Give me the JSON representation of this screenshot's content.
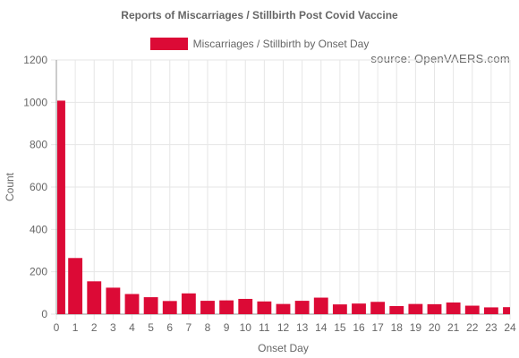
{
  "colors": {
    "bar": "#dc0a36",
    "grid": "#e6e6e6",
    "axis": "#999999",
    "text": "#666666"
  },
  "source_note": "source: OpenVAERS.com",
  "chart_data": {
    "type": "bar",
    "title": "Reports of Miscarriages / Stillbirth Post Covid Vaccine",
    "xlabel": "Onset Day",
    "ylabel": "Count",
    "ylim": [
      0,
      1200
    ],
    "yticks": [
      0,
      200,
      400,
      600,
      800,
      1000,
      1200
    ],
    "grid": true,
    "legend": "top-center",
    "categories": [
      "0",
      "1",
      "2",
      "3",
      "4",
      "5",
      "6",
      "7",
      "8",
      "9",
      "10",
      "11",
      "12",
      "13",
      "14",
      "15",
      "16",
      "17",
      "18",
      "19",
      "20",
      "21",
      "22",
      "23",
      "24"
    ],
    "series": [
      {
        "name": "Miscarriages / Stillbirth by Onset Day",
        "values": [
          1008,
          265,
          155,
          125,
          95,
          80,
          62,
          98,
          63,
          65,
          72,
          60,
          48,
          63,
          78,
          46,
          50,
          58,
          38,
          48,
          47,
          55,
          40,
          32,
          33
        ]
      }
    ]
  }
}
